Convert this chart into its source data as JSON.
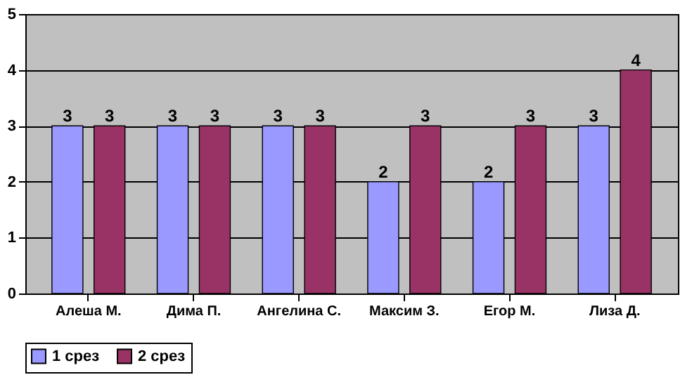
{
  "chart_data": {
    "type": "bar",
    "categories": [
      "Алеша М.",
      "Дима П.",
      "Ангелина С.",
      "Максим З.",
      "Егор М.",
      "Лиза Д."
    ],
    "series": [
      {
        "name": "1 срез",
        "color": "#9999ff",
        "values": [
          3,
          3,
          3,
          2,
          2,
          3
        ]
      },
      {
        "name": "2 срез",
        "color": "#993366",
        "values": [
          3,
          3,
          3,
          3,
          3,
          4
        ]
      }
    ],
    "ylim": [
      0,
      5
    ],
    "yticks": [
      0,
      1,
      2,
      3,
      4,
      5
    ],
    "grid": "y",
    "legend": "bottom",
    "data_labels": true
  }
}
